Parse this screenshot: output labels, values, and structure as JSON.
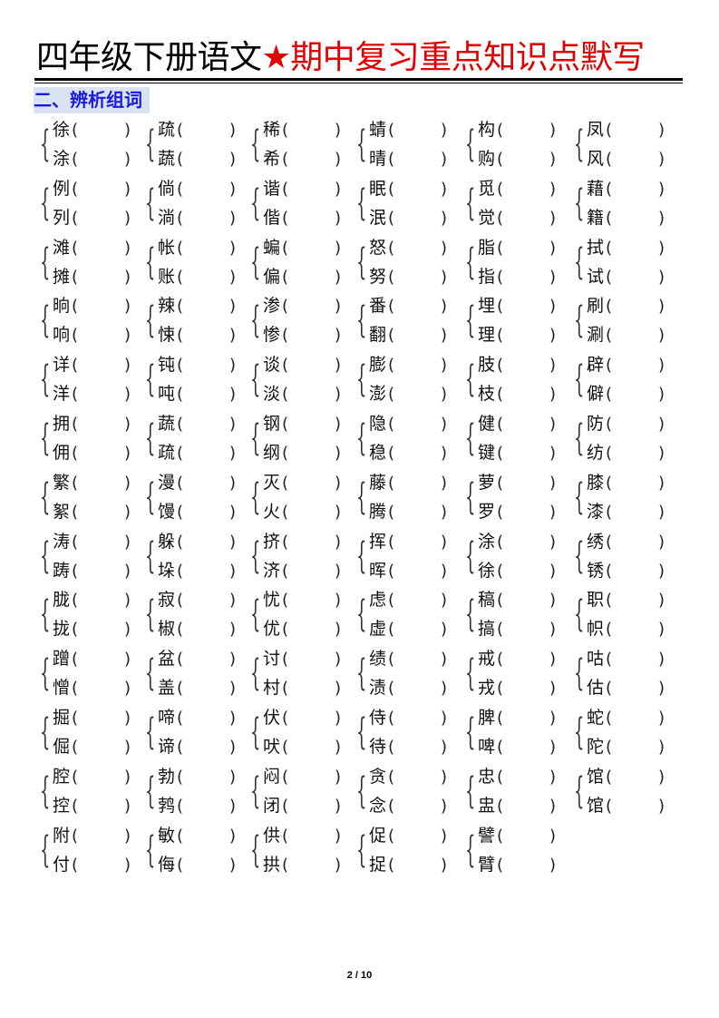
{
  "title": {
    "black": "四年级下册语文",
    "star": "★",
    "red": "期中复习重点知识点默写"
  },
  "section": "二、辨析组词",
  "paren_open": "(",
  "paren_close": ")",
  "rows": [
    [
      [
        "徐",
        "涂"
      ],
      [
        "疏",
        "蔬"
      ],
      [
        "稀",
        "希"
      ],
      [
        "蜻",
        "晴"
      ],
      [
        "构",
        "购"
      ],
      [
        "凤",
        "风"
      ]
    ],
    [
      [
        "例",
        "列"
      ],
      [
        "倘",
        "淌"
      ],
      [
        "谐",
        "偕"
      ],
      [
        "眠",
        "泯"
      ],
      [
        "觅",
        "觉"
      ],
      [
        "藉",
        "籍"
      ]
    ],
    [
      [
        "滩",
        "摊"
      ],
      [
        "帐",
        "账"
      ],
      [
        "蝙",
        "偏"
      ],
      [
        "怒",
        "努"
      ],
      [
        "脂",
        "指"
      ],
      [
        "拭",
        "试"
      ]
    ],
    [
      [
        "晌",
        "响"
      ],
      [
        "辣",
        "悚"
      ],
      [
        "渗",
        "惨"
      ],
      [
        "番",
        "翻"
      ],
      [
        "埋",
        "理"
      ],
      [
        "刷",
        "涮"
      ]
    ],
    [
      [
        "详",
        "洋"
      ],
      [
        "钝",
        "吨"
      ],
      [
        "谈",
        "淡"
      ],
      [
        "膨",
        "澎"
      ],
      [
        "肢",
        "枝"
      ],
      [
        "辟",
        "僻"
      ]
    ],
    [
      [
        "拥",
        "佣"
      ],
      [
        "蔬",
        "疏"
      ],
      [
        "钢",
        "纲"
      ],
      [
        "隐",
        "稳"
      ],
      [
        "健",
        "键"
      ],
      [
        "防",
        "纺"
      ]
    ],
    [
      [
        "繁",
        "絮"
      ],
      [
        "漫",
        "馒"
      ],
      [
        "灭",
        "火"
      ],
      [
        "藤",
        "腾"
      ],
      [
        "萝",
        "罗"
      ],
      [
        "膝",
        "漆"
      ]
    ],
    [
      [
        "涛",
        "踌"
      ],
      [
        "躲",
        "垛"
      ],
      [
        "挤",
        "济"
      ],
      [
        "挥",
        "晖"
      ],
      [
        "涂",
        "徐"
      ],
      [
        "绣",
        "锈"
      ]
    ],
    [
      [
        "胧",
        "拢"
      ],
      [
        "寂",
        "椒"
      ],
      [
        "忧",
        "优"
      ],
      [
        "虑",
        "虚"
      ],
      [
        "稿",
        "搞"
      ],
      [
        "职",
        "帜"
      ]
    ],
    [
      [
        "蹭",
        "憎"
      ],
      [
        "盆",
        "盖"
      ],
      [
        "讨",
        "村"
      ],
      [
        "绩",
        "渍"
      ],
      [
        "戒",
        "戎"
      ],
      [
        "咕",
        "估"
      ]
    ],
    [
      [
        "掘",
        "倔"
      ],
      [
        "啼",
        "谛"
      ],
      [
        "伏",
        "吠"
      ],
      [
        "侍",
        "待"
      ],
      [
        "脾",
        "啤"
      ],
      [
        "蛇",
        "陀"
      ]
    ],
    [
      [
        "腔",
        "控"
      ],
      [
        "勃",
        "鹁"
      ],
      [
        "闷",
        "闭"
      ],
      [
        "贪",
        "念"
      ],
      [
        "忠",
        "盅"
      ],
      [
        "馆",
        "馆"
      ]
    ],
    [
      [
        "附",
        "付"
      ],
      [
        "敏",
        "侮"
      ],
      [
        "供",
        "拱"
      ],
      [
        "促",
        "捉"
      ],
      [
        "譬",
        "臂"
      ]
    ]
  ],
  "footer": "2 / 10"
}
